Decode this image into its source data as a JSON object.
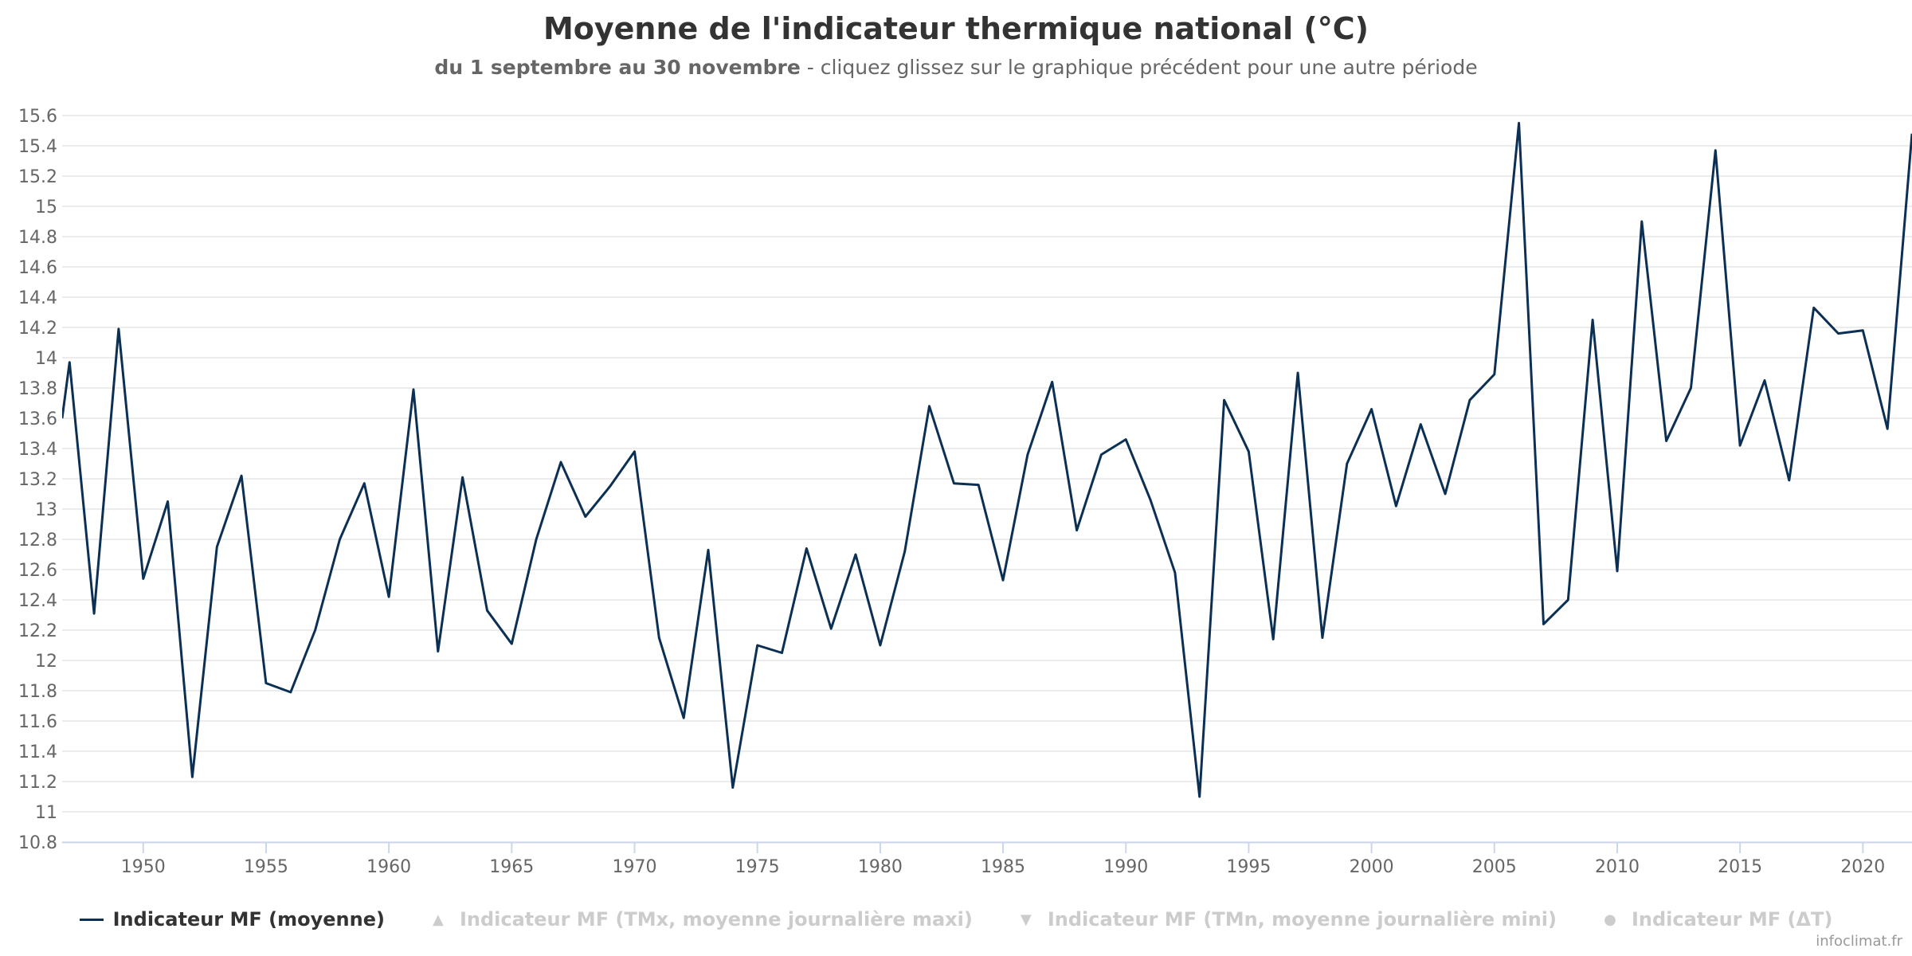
{
  "title": "Moyenne de l'indicateur thermique national (°C)",
  "subtitle_bold": "du 1 septembre au 30 novembre",
  "subtitle_rest": " - cliquez glissez sur le graphique précédent pour une autre période",
  "credit": "infoclimat.fr",
  "colors": {
    "series": "#0b3054",
    "grid": "#e6e6e6",
    "axis": "#ccd6eb",
    "inactive": "#cccccc"
  },
  "legend": [
    {
      "label": "Indicateur MF (moyenne)",
      "symbol": "line",
      "active": true
    },
    {
      "label": "Indicateur MF (TMx, moyenne journalière maxi)",
      "symbol": "▲",
      "active": false
    },
    {
      "label": "Indicateur MF (TMn, moyenne journalière mini)",
      "symbol": "▼",
      "active": false
    },
    {
      "label": "Indicateur MF (ΔT)",
      "symbol": "●",
      "active": false
    }
  ],
  "chart_data": {
    "type": "line",
    "title": "Moyenne de l'indicateur thermique national (°C)",
    "xlim": [
      1946.7,
      2022
    ],
    "ylim": [
      10.8,
      15.6
    ],
    "x_ticks": [
      1950,
      1955,
      1960,
      1965,
      1970,
      1975,
      1980,
      1985,
      1990,
      1995,
      2000,
      2005,
      2010,
      2015,
      2020
    ],
    "y_ticks": [
      10.8,
      11,
      11.2,
      11.4,
      11.6,
      11.8,
      12,
      12.2,
      12.4,
      12.6,
      12.8,
      13,
      13.2,
      13.4,
      13.6,
      13.8,
      14,
      14.2,
      14.4,
      14.6,
      14.8,
      15,
      15.2,
      15.4,
      15.6
    ],
    "grid": true,
    "legend_position": "bottom-center",
    "series": [
      {
        "name": "Indicateur MF (moyenne)",
        "x": [
          1947,
          1948,
          1949,
          1950,
          1951,
          1952,
          1953,
          1954,
          1955,
          1956,
          1957,
          1958,
          1959,
          1960,
          1961,
          1962,
          1963,
          1964,
          1965,
          1966,
          1967,
          1968,
          1969,
          1970,
          1971,
          1972,
          1973,
          1974,
          1975,
          1976,
          1977,
          1978,
          1979,
          1980,
          1981,
          1982,
          1983,
          1984,
          1985,
          1986,
          1987,
          1988,
          1989,
          1990,
          1991,
          1992,
          1993,
          1994,
          1995,
          1996,
          1997,
          1998,
          1999,
          2000,
          2001,
          2002,
          2003,
          2004,
          2005,
          2006,
          2007,
          2008,
          2009,
          2010,
          2011,
          2012,
          2013,
          2014,
          2015,
          2016,
          2017,
          2018,
          2019,
          2020,
          2021,
          2022
        ],
        "values": [
          13.97,
          12.31,
          14.19,
          12.54,
          13.05,
          11.23,
          12.75,
          13.22,
          11.85,
          11.79,
          12.2,
          12.8,
          13.17,
          12.42,
          13.79,
          12.06,
          13.21,
          12.33,
          12.11,
          12.8,
          13.31,
          12.95,
          13.15,
          13.38,
          12.15,
          11.62,
          12.73,
          11.16,
          12.1,
          12.05,
          12.74,
          12.21,
          12.7,
          12.1,
          12.72,
          13.68,
          13.17,
          13.16,
          12.53,
          13.36,
          13.84,
          12.86,
          13.36,
          13.46,
          13.06,
          12.58,
          11.1,
          13.72,
          13.38,
          12.14,
          13.9,
          12.15,
          13.3,
          13.66,
          13.02,
          13.56,
          13.1,
          13.72,
          13.89,
          15.55,
          12.24,
          12.4,
          14.25,
          12.59,
          14.9,
          13.45,
          13.8,
          15.37,
          13.42,
          13.85,
          13.19,
          14.33,
          14.16,
          14.18,
          13.53,
          15.48
        ]
      }
    ]
  }
}
